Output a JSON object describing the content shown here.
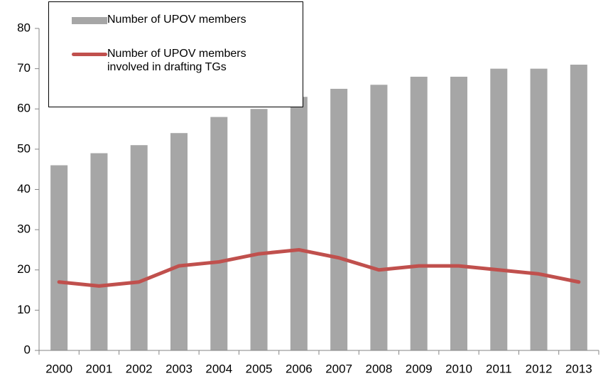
{
  "chart_data": {
    "type": "bar",
    "categories": [
      "2000",
      "2001",
      "2002",
      "2003",
      "2004",
      "2005",
      "2006",
      "2007",
      "2008",
      "2009",
      "2010",
      "2011",
      "2012",
      "2013"
    ],
    "series": [
      {
        "name": "Number of UPOV members",
        "type": "bar",
        "color": "#a6a6a6",
        "values": [
          46,
          49,
          51,
          54,
          58,
          60,
          63,
          65,
          66,
          68,
          68,
          70,
          70,
          71
        ]
      },
      {
        "name": "Number of UPOV members involved in drafting TGs",
        "type": "line",
        "color": "#c0504d",
        "values": [
          17,
          16,
          17,
          21,
          22,
          24,
          25,
          23,
          20,
          21,
          21,
          20,
          19,
          17
        ]
      }
    ],
    "ylim": [
      0,
      80
    ],
    "yticks": [
      0,
      10,
      20,
      30,
      40,
      50,
      60,
      70,
      80
    ],
    "grid": false
  }
}
